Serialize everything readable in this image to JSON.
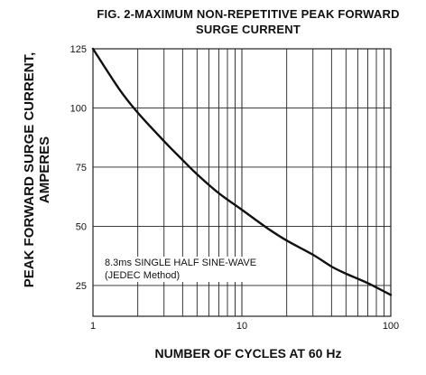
{
  "chart_data": {
    "type": "line",
    "title": "FIG. 2-MAXIMUM NON-REPETITIVE PEAK FORWARD",
    "subtitle": "SURGE CURRENT",
    "ylabel": [
      "PEAK  FORWARD SURGE CURRENT,",
      "AMPERES"
    ],
    "xlabel": "NUMBER OF CYCLES AT 60 Hz",
    "xscale": "log",
    "xlim": [
      1,
      100
    ],
    "ylim": [
      12,
      125
    ],
    "xticks": [
      1,
      10,
      100
    ],
    "yticks": [
      25,
      50,
      75,
      100,
      125
    ],
    "grid": true,
    "annotation": [
      "8.3ms SINGLE HALF SINE-WAVE",
      "(JEDEC Method)"
    ],
    "series": [
      {
        "x": [
          1,
          1.5,
          2,
          3,
          4,
          5,
          7,
          10,
          15,
          20,
          30,
          40,
          50,
          70,
          100
        ],
        "y": [
          125,
          108,
          98,
          86,
          78,
          72,
          64,
          57,
          49,
          44,
          38,
          33,
          30,
          26,
          21
        ]
      }
    ]
  },
  "colors": {
    "line": "#111111",
    "grid": "#222222"
  }
}
